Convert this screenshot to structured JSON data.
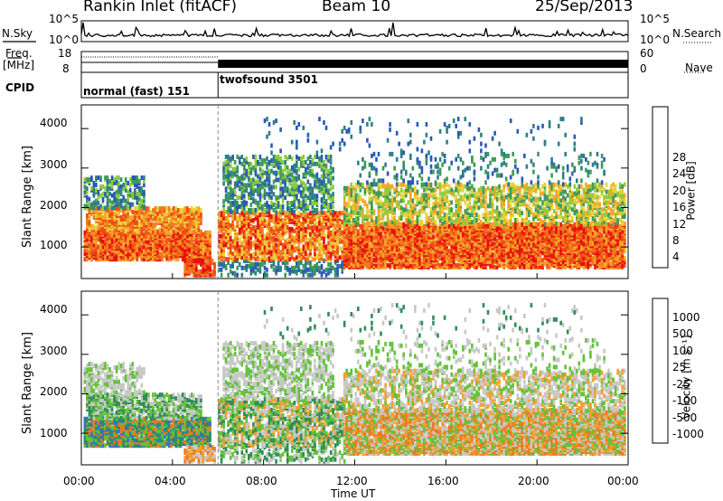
{
  "header": {
    "station": "Rankin Inlet (fitACF)",
    "beam": "Beam 10",
    "date": "25/Sep/2013"
  },
  "strip_labels": {
    "nsky": "N.Sky",
    "nsearch": "N.Search",
    "freq": "Freq.",
    "freq_unit": "[MHz]",
    "nave": "Nave",
    "cpid": "CPID"
  },
  "chart_data": [
    {
      "type": "line",
      "panel": "noise",
      "y_ticks_left": [
        "10^5",
        "10^0"
      ],
      "y_ticks_right": [
        "10^5",
        "10^0"
      ],
      "series": [
        {
          "name": "N.Sky",
          "style": "solid"
        },
        {
          "name": "N.Search",
          "style": "dotted"
        }
      ]
    },
    {
      "type": "line",
      "panel": "frequency",
      "y_ticks_left": [
        "18",
        "8"
      ],
      "y_ticks_right": [
        "60",
        "0"
      ],
      "series": [
        {
          "name": "Freq.",
          "style": "dotted",
          "x": [
            "00:00",
            "06:00",
            "06:00",
            "24:00"
          ],
          "y_unit": "MHz"
        },
        {
          "name": "Nave",
          "style": "dotted"
        }
      ]
    },
    {
      "type": "table",
      "panel": "cpid",
      "segments": [
        {
          "label": "normal (fast) 151",
          "start": "00:00",
          "end": "06:00"
        },
        {
          "label": "twofsound 3501",
          "start": "06:00",
          "end": "24:00"
        }
      ]
    },
    {
      "type": "heatmap",
      "panel": "power",
      "ylabel": "Slant Range [km]",
      "yticks": [
        "1000",
        "2000",
        "3000",
        "4000"
      ],
      "ylim": [
        200,
        4600
      ],
      "colorbar_label": "Power [dB]",
      "colorbar_ticks": [
        "4",
        "8",
        "12",
        "16",
        "20",
        "24",
        "28"
      ],
      "colorbar_range": [
        0,
        32
      ],
      "colors": [
        "#1414e6",
        "#2a58b8",
        "#2f7f86",
        "#3e9a5a",
        "#8ccc3c",
        "#e8d23a",
        "#f5a628",
        "#f07a1e",
        "#f04a16",
        "#e60e0e"
      ]
    },
    {
      "type": "heatmap",
      "panel": "velocity",
      "ylabel": "Slant Range [km]",
      "yticks": [
        "1000",
        "2000",
        "3000",
        "4000"
      ],
      "ylim": [
        200,
        4600
      ],
      "xlabel": "Time UT",
      "xticks": [
        "00:00",
        "04:00",
        "08:00",
        "12:00",
        "16:00",
        "20:00",
        "00:00"
      ],
      "colorbar_label": "Velocity [m s⁻¹]",
      "colorbar_ticks": [
        "1000",
        "500",
        "100",
        "25",
        "-25",
        "-100",
        "-500",
        "-1000"
      ],
      "colors": [
        "#1f2fb0",
        "#2b7ab6",
        "#2f8c5a",
        "#63c23a",
        "#c8c8c8",
        "#f0a030",
        "#ee7820",
        "#e63c14",
        "#e60a0a"
      ]
    }
  ]
}
